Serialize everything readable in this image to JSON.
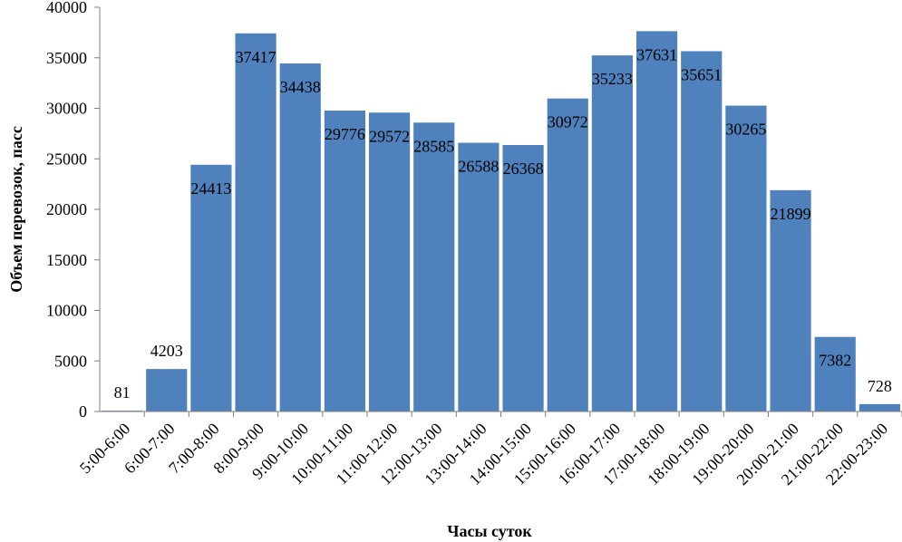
{
  "colors": {
    "bar": "#4f81bd",
    "axis": "#808080",
    "background": "#ffffff",
    "text": "#000000"
  },
  "chart_data": {
    "type": "bar",
    "title": "",
    "xlabel": "Часы суток",
    "ylabel": "Объем перевозок, пасс",
    "ylim": [
      0,
      40000
    ],
    "yticks": [
      0,
      5000,
      10000,
      15000,
      20000,
      25000,
      30000,
      35000,
      40000
    ],
    "grid": false,
    "legend": "none",
    "categories": [
      "5:00-6:00",
      "6:00-7:00",
      "7:00-8:00",
      "8:00-9:00",
      "9:00-10:00",
      "10:00-11:00",
      "11:00-12:00",
      "12:00-13:00",
      "13:00-14:00",
      "14:00-15:00",
      "15:00-16:00",
      "16:00-17:00",
      "17:00-18:00",
      "18:00-19:00",
      "19:00-20:00",
      "20:00-21:00",
      "21:00-22:00",
      "22:00-23:00"
    ],
    "values": [
      81,
      4203,
      24413,
      37417,
      34438,
      29776,
      29572,
      28585,
      26588,
      26368,
      30972,
      35233,
      37631,
      35651,
      30265,
      21899,
      7382,
      728
    ]
  }
}
